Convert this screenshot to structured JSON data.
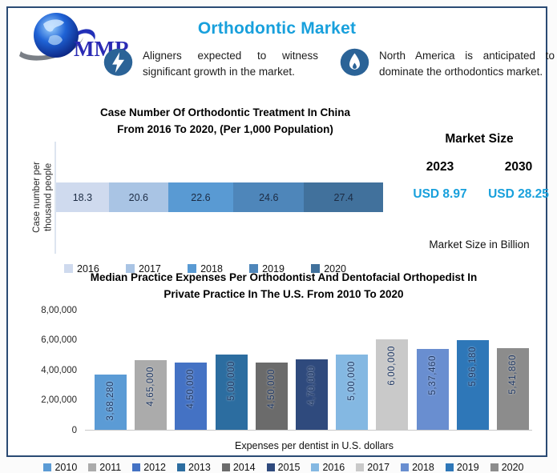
{
  "header": {
    "logo_text": "MMR",
    "title": "Orthodontic Market"
  },
  "callouts": [
    {
      "icon": "lightning-icon",
      "text": "Aligners expected to witness significant growth in the market."
    },
    {
      "icon": "flame-icon",
      "text": "North America is anticipated to dominate the orthodontics market."
    }
  ],
  "market_size": {
    "title": "Market Size",
    "items": [
      {
        "year": "2023",
        "value": "USD 8.97"
      },
      {
        "year": "2030",
        "value": "USD 28.25"
      }
    ],
    "note": "Market Size in Billion",
    "accent_color": "#18a0dc"
  },
  "chart_data": [
    {
      "type": "bar",
      "orientation": "horizontal-stacked",
      "title": "Case Number Of Orthodontic Treatment In China\nFrom 2016 To 2020, (Per 1,000 Population)",
      "ylabel": "Case number per\nthousand people",
      "categories": [
        "2016",
        "2017",
        "2018",
        "2019",
        "2020"
      ],
      "values": [
        18.3,
        20.6,
        22.6,
        24.6,
        27.4
      ],
      "labels": [
        "18.3",
        "20.6",
        "22.6",
        "24.6",
        "27.4"
      ],
      "colors": [
        "#cfdaee",
        "#a9c4e4",
        "#599ad3",
        "#4e86ba",
        "#41719c"
      ],
      "legend_position": "bottom",
      "grid": false
    },
    {
      "type": "bar",
      "orientation": "vertical",
      "title": "Median Practice Expenses Per Orthodontist And Dentofacial Orthopedist In\nPrivate Practice In The U.S. From 2010 To 2020",
      "xlabel": "Expenses per dentist in U.S. dollars",
      "categories": [
        "2010",
        "2011",
        "2012",
        "2013",
        "2014",
        "2015",
        "2016",
        "2017",
        "2018",
        "2019",
        "2020"
      ],
      "values": [
        368280,
        465000,
        450000,
        500000,
        450000,
        470000,
        500000,
        600000,
        537460,
        596180,
        541860
      ],
      "labels": [
        "3,68,280",
        "4,65,000",
        "4,50,000",
        "5,00,000",
        "4,50,000",
        "4,70,000",
        "5,00,000",
        "6,00,000",
        "5,37,460",
        "5,96,180",
        "5,41,860"
      ],
      "colors": [
        "#5b9bd5",
        "#ababab",
        "#4472c4",
        "#2c6da0",
        "#6b6b6b",
        "#2f4a7d",
        "#84b8e2",
        "#c9c9c9",
        "#698ed0",
        "#2e77b8",
        "#8c8c8c"
      ],
      "ylim": [
        0,
        800000
      ],
      "yticks": [
        "0",
        "2,00,000",
        "4,00,000",
        "6,00,000",
        "8,00,000"
      ],
      "legend_position": "bottom",
      "grid": false
    }
  ]
}
